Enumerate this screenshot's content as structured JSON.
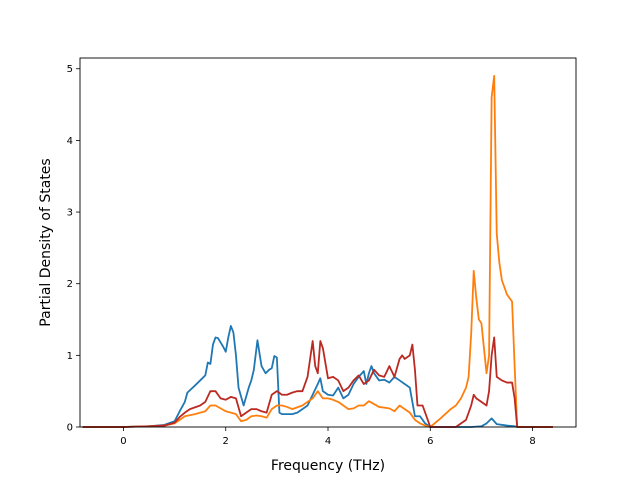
{
  "chart_data": {
    "type": "line",
    "title": "",
    "xlabel": "Frequency (THz)",
    "ylabel": "Partial Density of States",
    "xlim": [
      -0.85,
      8.85
    ],
    "ylim": [
      0,
      5.15
    ],
    "xticks": [
      0,
      2,
      4,
      6,
      8
    ],
    "yticks": [
      0,
      1,
      2,
      3,
      4,
      5
    ],
    "grid": false,
    "legend": "none",
    "series": [
      {
        "color": "#1f77b4",
        "points": [
          [
            -0.8,
            0
          ],
          [
            0,
            0
          ],
          [
            0.5,
            0.01
          ],
          [
            0.8,
            0.03
          ],
          [
            1.0,
            0.08
          ],
          [
            1.1,
            0.22
          ],
          [
            1.2,
            0.35
          ],
          [
            1.25,
            0.48
          ],
          [
            1.4,
            0.58
          ],
          [
            1.5,
            0.65
          ],
          [
            1.6,
            0.72
          ],
          [
            1.65,
            0.9
          ],
          [
            1.7,
            0.88
          ],
          [
            1.75,
            1.15
          ],
          [
            1.8,
            1.25
          ],
          [
            1.85,
            1.24
          ],
          [
            1.9,
            1.18
          ],
          [
            1.95,
            1.12
          ],
          [
            2.0,
            1.05
          ],
          [
            2.05,
            1.25
          ],
          [
            2.1,
            1.41
          ],
          [
            2.15,
            1.32
          ],
          [
            2.2,
            1.0
          ],
          [
            2.25,
            0.55
          ],
          [
            2.35,
            0.3
          ],
          [
            2.45,
            0.55
          ],
          [
            2.5,
            0.65
          ],
          [
            2.55,
            0.8
          ],
          [
            2.62,
            1.21
          ],
          [
            2.7,
            0.85
          ],
          [
            2.78,
            0.75
          ],
          [
            2.85,
            0.8
          ],
          [
            2.9,
            0.82
          ],
          [
            2.95,
            0.99
          ],
          [
            3.0,
            0.97
          ],
          [
            3.05,
            0.2
          ],
          [
            3.1,
            0.18
          ],
          [
            3.3,
            0.18
          ],
          [
            3.4,
            0.2
          ],
          [
            3.5,
            0.25
          ],
          [
            3.6,
            0.3
          ],
          [
            3.7,
            0.45
          ],
          [
            3.8,
            0.6
          ],
          [
            3.85,
            0.68
          ],
          [
            3.9,
            0.5
          ],
          [
            4.0,
            0.45
          ],
          [
            4.1,
            0.44
          ],
          [
            4.2,
            0.55
          ],
          [
            4.3,
            0.4
          ],
          [
            4.4,
            0.45
          ],
          [
            4.5,
            0.6
          ],
          [
            4.6,
            0.7
          ],
          [
            4.7,
            0.78
          ],
          [
            4.75,
            0.6
          ],
          [
            4.8,
            0.75
          ],
          [
            4.85,
            0.85
          ],
          [
            4.9,
            0.75
          ],
          [
            5.0,
            0.65
          ],
          [
            5.1,
            0.66
          ],
          [
            5.2,
            0.62
          ],
          [
            5.3,
            0.7
          ],
          [
            5.4,
            0.65
          ],
          [
            5.5,
            0.6
          ],
          [
            5.6,
            0.55
          ],
          [
            5.7,
            0.15
          ],
          [
            5.8,
            0.15
          ],
          [
            5.9,
            0.05
          ],
          [
            6.0,
            0
          ],
          [
            6.5,
            0
          ],
          [
            6.8,
            0
          ],
          [
            7.0,
            0.01
          ],
          [
            7.1,
            0.05
          ],
          [
            7.2,
            0.12
          ],
          [
            7.25,
            0.08
          ],
          [
            7.3,
            0.04
          ],
          [
            7.5,
            0.02
          ],
          [
            7.65,
            0.01
          ],
          [
            7.7,
            0
          ],
          [
            8.4,
            0
          ]
        ]
      },
      {
        "color": "#ff7f0e",
        "points": [
          [
            -0.8,
            0
          ],
          [
            0,
            0
          ],
          [
            0.5,
            0.01
          ],
          [
            0.8,
            0.02
          ],
          [
            1.0,
            0.05
          ],
          [
            1.1,
            0.1
          ],
          [
            1.2,
            0.15
          ],
          [
            1.4,
            0.18
          ],
          [
            1.6,
            0.22
          ],
          [
            1.7,
            0.3
          ],
          [
            1.8,
            0.3
          ],
          [
            1.9,
            0.26
          ],
          [
            2.0,
            0.22
          ],
          [
            2.1,
            0.2
          ],
          [
            2.2,
            0.18
          ],
          [
            2.3,
            0.08
          ],
          [
            2.4,
            0.1
          ],
          [
            2.5,
            0.15
          ],
          [
            2.6,
            0.16
          ],
          [
            2.7,
            0.15
          ],
          [
            2.8,
            0.13
          ],
          [
            2.9,
            0.25
          ],
          [
            3.0,
            0.3
          ],
          [
            3.1,
            0.3
          ],
          [
            3.2,
            0.28
          ],
          [
            3.3,
            0.25
          ],
          [
            3.5,
            0.3
          ],
          [
            3.6,
            0.35
          ],
          [
            3.7,
            0.4
          ],
          [
            3.8,
            0.5
          ],
          [
            3.9,
            0.4
          ],
          [
            4.0,
            0.4
          ],
          [
            4.1,
            0.38
          ],
          [
            4.2,
            0.35
          ],
          [
            4.3,
            0.3
          ],
          [
            4.4,
            0.25
          ],
          [
            4.5,
            0.26
          ],
          [
            4.6,
            0.3
          ],
          [
            4.7,
            0.3
          ],
          [
            4.8,
            0.36
          ],
          [
            4.9,
            0.32
          ],
          [
            5.0,
            0.28
          ],
          [
            5.2,
            0.26
          ],
          [
            5.3,
            0.22
          ],
          [
            5.4,
            0.3
          ],
          [
            5.5,
            0.25
          ],
          [
            5.6,
            0.2
          ],
          [
            5.7,
            0.1
          ],
          [
            5.8,
            0.05
          ],
          [
            5.9,
            0.02
          ],
          [
            6.0,
            0
          ],
          [
            6.2,
            0.12
          ],
          [
            6.4,
            0.25
          ],
          [
            6.5,
            0.3
          ],
          [
            6.6,
            0.4
          ],
          [
            6.7,
            0.55
          ],
          [
            6.75,
            0.7
          ],
          [
            6.8,
            1.3
          ],
          [
            6.85,
            2.18
          ],
          [
            6.9,
            1.8
          ],
          [
            6.95,
            1.5
          ],
          [
            7.0,
            1.45
          ],
          [
            7.1,
            0.75
          ],
          [
            7.15,
            1.0
          ],
          [
            7.2,
            4.6
          ],
          [
            7.25,
            4.9
          ],
          [
            7.3,
            2.7
          ],
          [
            7.35,
            2.3
          ],
          [
            7.4,
            2.05
          ],
          [
            7.5,
            1.85
          ],
          [
            7.6,
            1.75
          ],
          [
            7.65,
            0.85
          ],
          [
            7.7,
            0
          ],
          [
            8.4,
            0
          ]
        ]
      },
      {
        "color": "#bb2a22",
        "points": [
          [
            -0.8,
            0
          ],
          [
            0,
            0
          ],
          [
            0.5,
            0.01
          ],
          [
            0.8,
            0.02
          ],
          [
            1.0,
            0.06
          ],
          [
            1.1,
            0.14
          ],
          [
            1.2,
            0.2
          ],
          [
            1.3,
            0.25
          ],
          [
            1.5,
            0.3
          ],
          [
            1.6,
            0.35
          ],
          [
            1.7,
            0.5
          ],
          [
            1.8,
            0.5
          ],
          [
            1.9,
            0.4
          ],
          [
            2.0,
            0.38
          ],
          [
            2.1,
            0.42
          ],
          [
            2.2,
            0.4
          ],
          [
            2.3,
            0.15
          ],
          [
            2.4,
            0.2
          ],
          [
            2.5,
            0.25
          ],
          [
            2.6,
            0.25
          ],
          [
            2.7,
            0.22
          ],
          [
            2.8,
            0.2
          ],
          [
            2.9,
            0.45
          ],
          [
            3.0,
            0.5
          ],
          [
            3.1,
            0.45
          ],
          [
            3.2,
            0.45
          ],
          [
            3.3,
            0.48
          ],
          [
            3.4,
            0.5
          ],
          [
            3.5,
            0.5
          ],
          [
            3.6,
            0.7
          ],
          [
            3.7,
            1.2
          ],
          [
            3.75,
            0.85
          ],
          [
            3.8,
            0.75
          ],
          [
            3.85,
            1.2
          ],
          [
            3.9,
            1.1
          ],
          [
            4.0,
            0.68
          ],
          [
            4.1,
            0.7
          ],
          [
            4.2,
            0.65
          ],
          [
            4.3,
            0.5
          ],
          [
            4.4,
            0.55
          ],
          [
            4.5,
            0.65
          ],
          [
            4.6,
            0.72
          ],
          [
            4.7,
            0.6
          ],
          [
            4.8,
            0.65
          ],
          [
            4.9,
            0.8
          ],
          [
            5.0,
            0.72
          ],
          [
            5.1,
            0.7
          ],
          [
            5.2,
            0.85
          ],
          [
            5.3,
            0.7
          ],
          [
            5.4,
            0.95
          ],
          [
            5.45,
            1.0
          ],
          [
            5.5,
            0.95
          ],
          [
            5.6,
            1.0
          ],
          [
            5.65,
            1.15
          ],
          [
            5.7,
            0.8
          ],
          [
            5.75,
            0.3
          ],
          [
            5.85,
            0.3
          ],
          [
            5.95,
            0.1
          ],
          [
            6.0,
            0
          ],
          [
            6.5,
            0
          ],
          [
            6.7,
            0.1
          ],
          [
            6.8,
            0.3
          ],
          [
            6.85,
            0.45
          ],
          [
            6.9,
            0.4
          ],
          [
            7.0,
            0.35
          ],
          [
            7.1,
            0.3
          ],
          [
            7.15,
            0.5
          ],
          [
            7.2,
            1.0
          ],
          [
            7.25,
            1.25
          ],
          [
            7.3,
            0.7
          ],
          [
            7.4,
            0.65
          ],
          [
            7.5,
            0.62
          ],
          [
            7.6,
            0.62
          ],
          [
            7.65,
            0.4
          ],
          [
            7.7,
            0
          ],
          [
            8.4,
            0
          ]
        ]
      }
    ]
  }
}
